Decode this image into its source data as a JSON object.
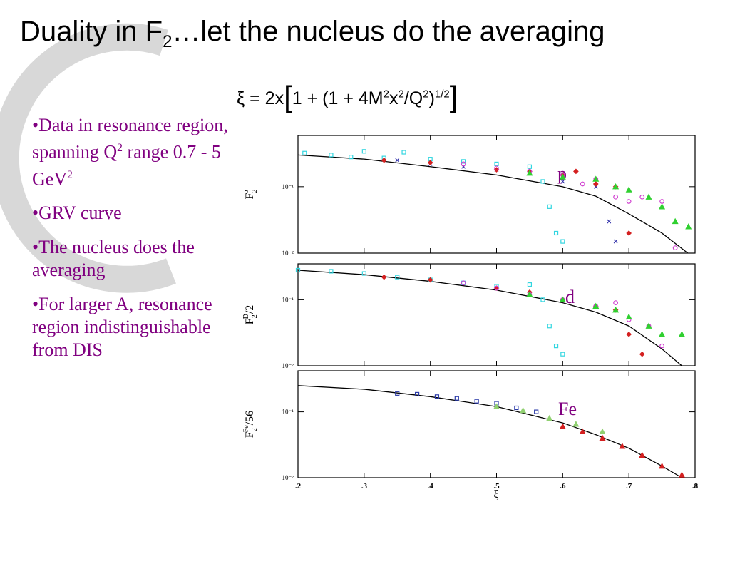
{
  "title": {
    "pre": "Duality in F",
    "sub": "2",
    "post": "…let the nucleus do the averaging"
  },
  "formula": [
    "ξ = 2x",
    "[",
    "1 + (1 + 4M",
    "2",
    "x",
    "2",
    "/Q",
    "2",
    ")",
    "1/2",
    "]"
  ],
  "bullets": [
    [
      "•Data in resonance region, spanning Q",
      "2",
      " range 0.7 - 5 GeV",
      "2"
    ],
    [
      "•GRV curve"
    ],
    [
      "•The nucleus does the averaging"
    ],
    [
      "•For larger A, resonance region indistinguishable from DIS"
    ]
  ],
  "chart_data": [
    {
      "type": "scatter",
      "log": true,
      "annotation": "p",
      "ylabel": [
        "F",
        "2",
        "p"
      ],
      "xlim": [
        0.2,
        0.8
      ],
      "ylim": [
        0.01,
        0.59
      ],
      "yticks": [
        {
          "value": 0.1,
          "label": "10⁻¹"
        },
        {
          "value": 0.01,
          "label": "10⁻²"
        }
      ],
      "series": [
        {
          "marker": "line",
          "color": "#000000",
          "x": [
            0.2,
            0.3,
            0.4,
            0.5,
            0.6,
            0.65,
            0.7,
            0.75,
            0.789
          ],
          "values": [
            0.3,
            0.26,
            0.2,
            0.15,
            0.1,
            0.072,
            0.039,
            0.02,
            0.01
          ]
        },
        {
          "marker": "square",
          "color": "#33d6e0",
          "x": [
            0.21,
            0.25,
            0.28,
            0.3,
            0.33,
            0.36,
            0.4,
            0.45,
            0.5,
            0.55,
            0.57,
            0.58,
            0.59,
            0.6
          ],
          "values": [
            0.32,
            0.3,
            0.28,
            0.34,
            0.27,
            0.33,
            0.26,
            0.24,
            0.22,
            0.2,
            0.12,
            0.05,
            0.02,
            0.015
          ]
        },
        {
          "marker": "x",
          "color": "#3333aa",
          "x": [
            0.35,
            0.4,
            0.45,
            0.5,
            0.55,
            0.6,
            0.65,
            0.67,
            0.68
          ],
          "values": [
            0.25,
            0.22,
            0.2,
            0.18,
            0.16,
            0.12,
            0.1,
            0.03,
            0.015
          ]
        },
        {
          "marker": "diamond",
          "color": "#d42020",
          "x": [
            0.33,
            0.4,
            0.5,
            0.55,
            0.6,
            0.62,
            0.65,
            0.68,
            0.7
          ],
          "values": [
            0.25,
            0.23,
            0.18,
            0.17,
            0.15,
            0.17,
            0.11,
            0.1,
            0.02
          ]
        },
        {
          "marker": "circle",
          "color": "#d040d0",
          "x": [
            0.45,
            0.5,
            0.55,
            0.6,
            0.63,
            0.65,
            0.68,
            0.7,
            0.72,
            0.75,
            0.77
          ],
          "values": [
            0.22,
            0.19,
            0.17,
            0.15,
            0.11,
            0.13,
            0.07,
            0.06,
            0.07,
            0.06,
            0.012
          ]
        },
        {
          "marker": "triangle",
          "color": "#30d030",
          "x": [
            0.55,
            0.6,
            0.65,
            0.68,
            0.7,
            0.73,
            0.75,
            0.77,
            0.79
          ],
          "values": [
            0.16,
            0.14,
            0.13,
            0.1,
            0.09,
            0.07,
            0.05,
            0.03,
            0.025
          ]
        }
      ]
    },
    {
      "type": "scatter",
      "log": true,
      "annotation": "d",
      "ylabel": [
        "F",
        "2",
        "D",
        "/2"
      ],
      "xlim": [
        0.2,
        0.8
      ],
      "ylim": [
        0.01,
        0.35
      ],
      "yticks": [
        {
          "value": 0.1,
          "label": "10⁻¹"
        },
        {
          "value": 0.01,
          "label": "10⁻²"
        }
      ],
      "series": [
        {
          "marker": "line",
          "color": "#000000",
          "x": [
            0.2,
            0.3,
            0.4,
            0.5,
            0.6,
            0.65,
            0.7,
            0.75,
            0.78
          ],
          "values": [
            0.28,
            0.24,
            0.19,
            0.14,
            0.09,
            0.065,
            0.04,
            0.018,
            0.01
          ]
        },
        {
          "marker": "square",
          "color": "#33d6e0",
          "x": [
            0.2,
            0.25,
            0.3,
            0.35,
            0.4,
            0.45,
            0.5,
            0.55,
            0.57,
            0.58,
            0.59,
            0.6
          ],
          "values": [
            0.28,
            0.27,
            0.25,
            0.22,
            0.2,
            0.18,
            0.16,
            0.17,
            0.1,
            0.04,
            0.02,
            0.015
          ]
        },
        {
          "marker": "diamond",
          "color": "#d42020",
          "x": [
            0.33,
            0.4,
            0.5,
            0.55,
            0.6,
            0.65,
            0.68,
            0.7,
            0.72
          ],
          "values": [
            0.22,
            0.2,
            0.15,
            0.13,
            0.1,
            0.08,
            0.07,
            0.03,
            0.015
          ]
        },
        {
          "marker": "circle",
          "color": "#d040d0",
          "x": [
            0.45,
            0.5,
            0.55,
            0.6,
            0.65,
            0.68,
            0.7,
            0.73,
            0.75
          ],
          "values": [
            0.18,
            0.15,
            0.12,
            0.1,
            0.08,
            0.09,
            0.05,
            0.04,
            0.02
          ]
        },
        {
          "marker": "triangle",
          "color": "#30d030",
          "x": [
            0.55,
            0.6,
            0.65,
            0.68,
            0.7,
            0.73,
            0.75,
            0.78
          ],
          "values": [
            0.12,
            0.1,
            0.08,
            0.07,
            0.055,
            0.04,
            0.03,
            0.03
          ]
        }
      ]
    },
    {
      "type": "scatter",
      "log": true,
      "annotation": "Fe",
      "ylabel": [
        "F",
        "2",
        "Fe",
        "/56"
      ],
      "xlabel": "ξ",
      "xlim": [
        0.2,
        0.8
      ],
      "ylim": [
        0.01,
        0.42
      ],
      "xticks": [
        {
          "value": 0.2,
          "label": ".2"
        },
        {
          "value": 0.3,
          "label": ".3"
        },
        {
          "value": 0.4,
          "label": ".4"
        },
        {
          "value": 0.5,
          "label": ".5"
        },
        {
          "value": 0.6,
          "label": ".6"
        },
        {
          "value": 0.7,
          "label": ".7"
        },
        {
          "value": 0.8,
          "label": ".8"
        }
      ],
      "yticks": [
        {
          "value": 0.1,
          "label": "10⁻¹"
        },
        {
          "value": 0.01,
          "label": "10⁻²"
        }
      ],
      "series": [
        {
          "marker": "line",
          "color": "#000000",
          "x": [
            0.2,
            0.3,
            0.4,
            0.5,
            0.6,
            0.65,
            0.7,
            0.75,
            0.78
          ],
          "values": [
            0.25,
            0.22,
            0.17,
            0.12,
            0.068,
            0.045,
            0.028,
            0.015,
            0.01
          ]
        },
        {
          "marker": "square",
          "color": "#2a3aa8",
          "x": [
            0.35,
            0.38,
            0.41,
            0.44,
            0.47,
            0.5,
            0.53,
            0.56
          ],
          "values": [
            0.19,
            0.185,
            0.17,
            0.16,
            0.145,
            0.135,
            0.115,
            0.1
          ]
        },
        {
          "marker": "triangle",
          "color": "#90d070",
          "x": [
            0.5,
            0.54,
            0.58,
            0.62,
            0.66
          ],
          "values": [
            0.12,
            0.105,
            0.08,
            0.065,
            0.05
          ]
        },
        {
          "marker": "triangle",
          "color": "#d42020",
          "x": [
            0.6,
            0.63,
            0.66,
            0.69,
            0.72,
            0.75,
            0.78
          ],
          "values": [
            0.06,
            0.05,
            0.04,
            0.03,
            0.022,
            0.015,
            0.011
          ]
        }
      ]
    }
  ]
}
